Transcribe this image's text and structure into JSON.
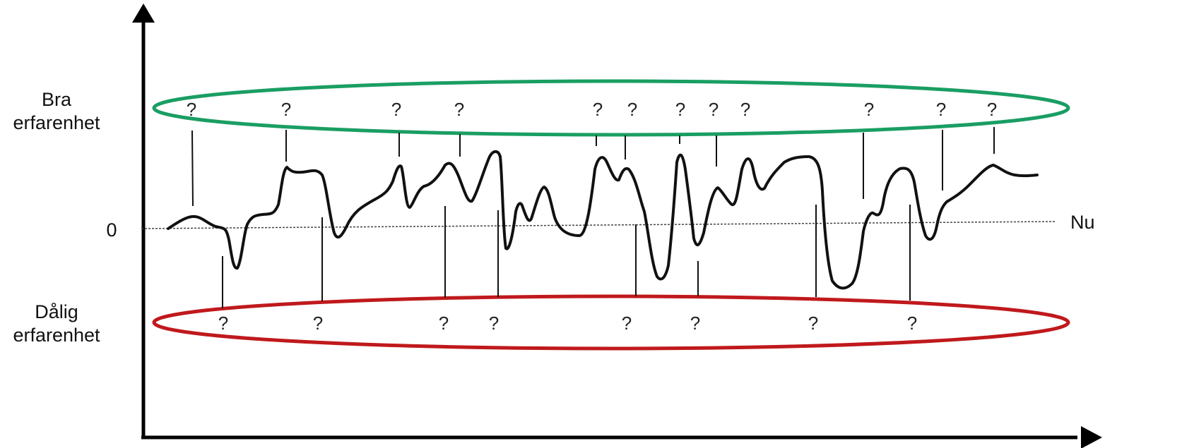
{
  "labels": {
    "good_line1": "Bra",
    "good_line2": "erfarenhet",
    "bad_line1": "Dålig",
    "bad_line2": "erfarenhet",
    "zero": "0",
    "now": "Nu"
  },
  "markers": {
    "good": [
      "?",
      "?",
      "?",
      "?",
      "?",
      "?",
      "?",
      "?",
      "?",
      "?",
      "?",
      "?"
    ],
    "bad": [
      "?",
      "?",
      "?",
      "?",
      "?",
      "?",
      "?",
      "?"
    ]
  },
  "colors": {
    "good_ellipse": "#1a9e63",
    "bad_ellipse": "#c0191c",
    "curve": "#111111",
    "axes": "#000000",
    "baseline": "#444444"
  }
}
